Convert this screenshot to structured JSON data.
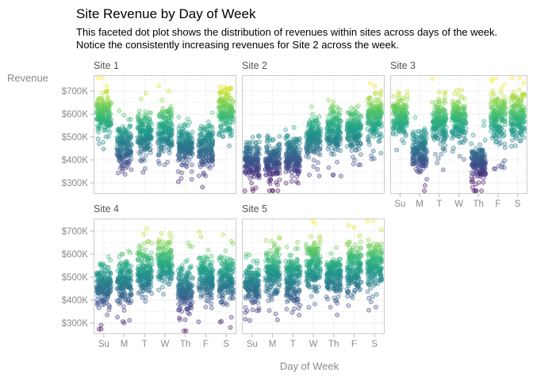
{
  "header": {
    "title": "Site Revenue by Day of Week",
    "subtitle": "This faceted dot plot shows the distribution of revenues within sites across days of the week.  Notice the consistently increasing revenues for Site 2 across the week."
  },
  "axes": {
    "y_title": "Revenue",
    "x_title": "Day of Week"
  },
  "colors": {
    "background": "#ffffff",
    "panel_border": "#cccccc",
    "grid_major": "#d4d4d4",
    "grid_minor": "#e4e4e4",
    "grid_vertical": "#dedede",
    "tick_mark": "#b9b9b9",
    "tick_text": "#8a8a8a",
    "axis_title_text": "#8a8a8a",
    "facet_label_text": "#555555",
    "title_text": "#000000"
  },
  "chart_data": {
    "type": "scatter",
    "subtype": "faceted jittered dot plot, dot color encodes revenue (viridis)",
    "title": "Site Revenue by Day of Week",
    "xlabel": "Day of Week",
    "ylabel": "Revenue",
    "facet_grid": {
      "rows": 2,
      "cols": 3
    },
    "days": [
      "Su",
      "M",
      "T",
      "W",
      "Th",
      "F",
      "S"
    ],
    "y_ticks": [
      {
        "label": "$300K",
        "value": 300
      },
      {
        "label": "$400K",
        "value": 400
      },
      {
        "label": "$500K",
        "value": 500
      },
      {
        "label": "$600K",
        "value": 600
      },
      {
        "label": "$700K",
        "value": 700
      }
    ],
    "y_units": "thousands of dollars ($K)",
    "ylim": [
      250,
      770
    ],
    "grid": "dotted; horizontal lines every $50K, vertical line at each day",
    "legend": "none",
    "color_scale": {
      "name": "viridis",
      "domain_k": [
        270,
        740
      ],
      "stops": [
        "#440154",
        "#482878",
        "#3e4989",
        "#31688e",
        "#26828e",
        "#1f9e89",
        "#35b779",
        "#6ece58",
        "#b5de2b",
        "#fde725"
      ]
    },
    "points_per_day": 170,
    "facets": [
      {
        "label": "Site 1",
        "day_mean_k": [
          605,
          455,
          515,
          525,
          465,
          465,
          612
        ],
        "day_sd_k": [
          45,
          45,
          45,
          50,
          45,
          45,
          50
        ]
      },
      {
        "label": "Site 2",
        "day_mean_k": [
          390,
          400,
          420,
          500,
          525,
          532,
          585
        ],
        "day_sd_k": [
          45,
          45,
          45,
          45,
          50,
          45,
          55
        ]
      },
      {
        "label": "Site 3",
        "day_mean_k": [
          585,
          437,
          560,
          575,
          387,
          580,
          590
        ],
        "day_sd_k": [
          45,
          45,
          50,
          48,
          45,
          55,
          55
        ]
      },
      {
        "label": "Site 4",
        "day_mean_k": [
          467,
          482,
          520,
          560,
          447,
          492,
          482
        ],
        "day_sd_k": [
          50,
          50,
          50,
          48,
          55,
          55,
          52
        ]
      },
      {
        "label": "Site 5",
        "day_mean_k": [
          465,
          520,
          483,
          548,
          507,
          540,
          550
        ],
        "day_sd_k": [
          45,
          52,
          55,
          55,
          45,
          52,
          50
        ]
      }
    ]
  }
}
